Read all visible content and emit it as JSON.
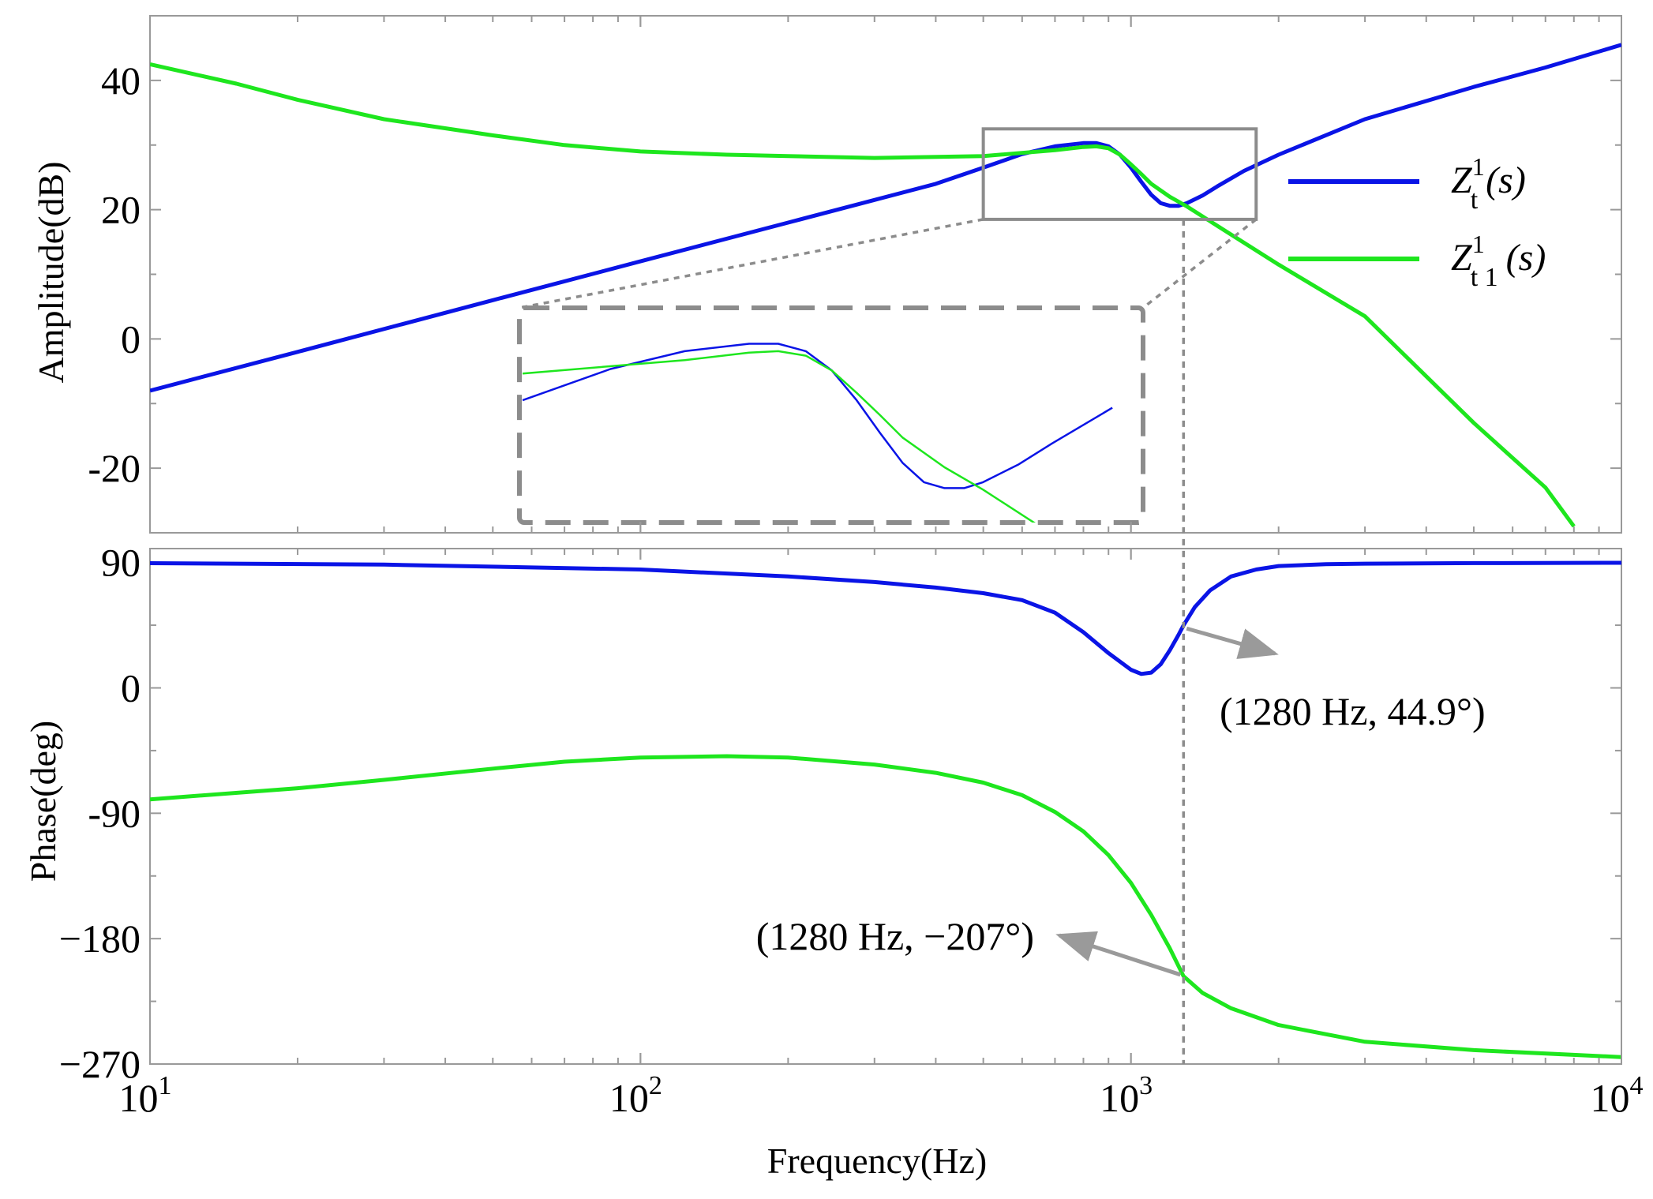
{
  "chart_data": {
    "type": "line",
    "title": "",
    "xlabel": "Frequency(Hz)",
    "xscale": "log",
    "xlim": [
      10,
      10000
    ],
    "x_ticks": [
      {
        "value": 10,
        "base": "10",
        "exp": "1"
      },
      {
        "value": 100,
        "base": "10",
        "exp": "2"
      },
      {
        "value": 1000,
        "base": "10",
        "exp": "3"
      },
      {
        "value": 10000,
        "base": "10",
        "exp": "4"
      }
    ],
    "grid": false,
    "legend": {
      "placement": "right",
      "entries": [
        {
          "series": "Zt1",
          "base": "Z",
          "sub": "t",
          "sup": "1",
          "arg": "(s)",
          "color": "#0a14e6"
        },
        {
          "series": "Zt11",
          "base": "Z",
          "sub": "t 1",
          "sup": "1",
          "arg": "(s)",
          "color": "#1ee61e"
        }
      ]
    },
    "subplots": [
      {
        "id": "amplitude",
        "ylabel": "Amplitude(dB)",
        "ylim": [
          -30,
          50
        ],
        "yticks": [
          40,
          20,
          0,
          -20
        ],
        "ytick_labels": [
          "40",
          "20",
          "0",
          "-20"
        ],
        "series": [
          {
            "key": "Zt1",
            "color": "#0a14e6",
            "x": [
              10,
              20,
              50,
              100,
              200,
              300,
              400,
              500,
              600,
              700,
              800,
              850,
              900,
              950,
              1000,
              1050,
              1100,
              1150,
              1200,
              1250,
              1300,
              1400,
              1500,
              1700,
              2000,
              3000,
              5000,
              7000,
              10000
            ],
            "values": [
              -8,
              -2,
              6,
              12,
              18,
              21.5,
              24,
              26.5,
              28.6,
              29.8,
              30.3,
              30.3,
              29.8,
              28.5,
              26.5,
              24.3,
              22.3,
              21,
              20.6,
              20.6,
              21,
              22.2,
              23.6,
              26,
              28.5,
              34,
              39,
              42,
              45.5
            ]
          },
          {
            "key": "Zt11",
            "color": "#1ee61e",
            "x": [
              10,
              15,
              20,
              30,
              50,
              70,
              100,
              150,
              200,
              300,
              500,
              700,
              800,
              850,
              900,
              950,
              1000,
              1050,
              1100,
              1200,
              1300,
              1500,
              2000,
              3000,
              5000,
              7000,
              8000
            ],
            "values": [
              42.5,
              39.5,
              37,
              34,
              31.5,
              30,
              29,
              28.5,
              28.3,
              28,
              28.3,
              29.2,
              29.7,
              29.8,
              29.5,
              28.5,
              27,
              25.5,
              24,
              22,
              20.5,
              17.5,
              11.5,
              3.5,
              -13,
              -23,
              -29
            ]
          }
        ],
        "zoom_box": {
          "x": [
            500,
            1800
          ],
          "y": [
            18.5,
            32.5
          ]
        },
        "inset": {
          "frequency_range": [
            500,
            1800
          ],
          "amplitude_range": [
            18.5,
            32.5
          ]
        }
      },
      {
        "id": "phase",
        "ylabel": "Phase(deg)",
        "ylim": [
          -270,
          100
        ],
        "yticks": [
          90,
          0,
          -90,
          -180,
          -270
        ],
        "ytick_labels": [
          "90",
          "0",
          "-90",
          "−180",
          "−270"
        ],
        "series": [
          {
            "key": "Zt1",
            "color": "#0a14e6",
            "x": [
              10,
              30,
              100,
              200,
              300,
              400,
              500,
              600,
              700,
              800,
              900,
              1000,
              1050,
              1100,
              1150,
              1200,
              1250,
              1280,
              1350,
              1450,
              1600,
              1800,
              2000,
              2500,
              3000,
              5000,
              10000
            ],
            "values": [
              89.5,
              88.5,
              85,
              80,
              76,
              72,
              68,
              63,
              54,
              40,
              25,
              13,
              10,
              11,
              17,
              27,
              38,
              44.9,
              58,
              70,
              80,
              85,
              87.5,
              88.8,
              89.2,
              89.6,
              89.8
            ]
          },
          {
            "key": "Zt11",
            "color": "#1ee61e",
            "x": [
              10,
              20,
              30,
              50,
              70,
              100,
              150,
              200,
              300,
              400,
              500,
              600,
              700,
              800,
              900,
              1000,
              1100,
              1200,
              1280,
              1400,
              1600,
              2000,
              3000,
              5000,
              10000
            ],
            "values": [
              -80,
              -72,
              -66,
              -58,
              -53,
              -50,
              -49,
              -50,
              -55,
              -61,
              -68,
              -77,
              -89,
              -103,
              -120,
              -140,
              -163,
              -187,
              -207,
              -219,
              -230,
              -242,
              -254,
              -260,
              -265
            ]
          }
        ]
      }
    ],
    "marker_line": {
      "x": 1280
    },
    "annotations": [
      {
        "text": "(1280 Hz, 44.9°)",
        "x": 1280,
        "y": 44.9,
        "series": "Zt1"
      },
      {
        "text": "(1280 Hz, −207°)",
        "x": 1280,
        "y": -207,
        "series": "Zt11"
      }
    ]
  }
}
